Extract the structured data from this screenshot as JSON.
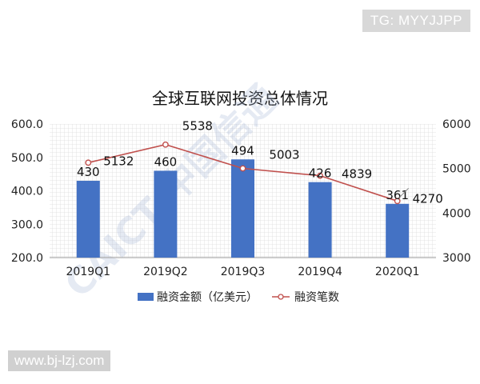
{
  "badge": "TG: MYYJJPP",
  "footer": "www.bj-lzj.com",
  "chart_data": {
    "type": "bar",
    "title": "全球互联网投资总体情况",
    "categories": [
      "2019Q1",
      "2019Q2",
      "2019Q3",
      "2019Q4",
      "2020Q1"
    ],
    "series": [
      {
        "name": "融资金额（亿美元）",
        "type": "bar",
        "axis": "left",
        "color": "#4472C4",
        "values": [
          430,
          460,
          494,
          426,
          361
        ]
      },
      {
        "name": "融资笔数",
        "type": "line",
        "axis": "right",
        "color": "#C0504D",
        "values": [
          5132,
          5538,
          5003,
          4839,
          4270
        ]
      }
    ],
    "y_left": {
      "ylim": [
        200,
        600
      ],
      "ticks": [
        "200.0",
        "300.0",
        "400.0",
        "500.0",
        "600.0"
      ]
    },
    "y_right": {
      "ylim": [
        3000,
        6000
      ],
      "ticks": [
        "3000",
        "4000",
        "5000",
        "6000"
      ]
    },
    "legend_position": "bottom",
    "grid": true
  }
}
